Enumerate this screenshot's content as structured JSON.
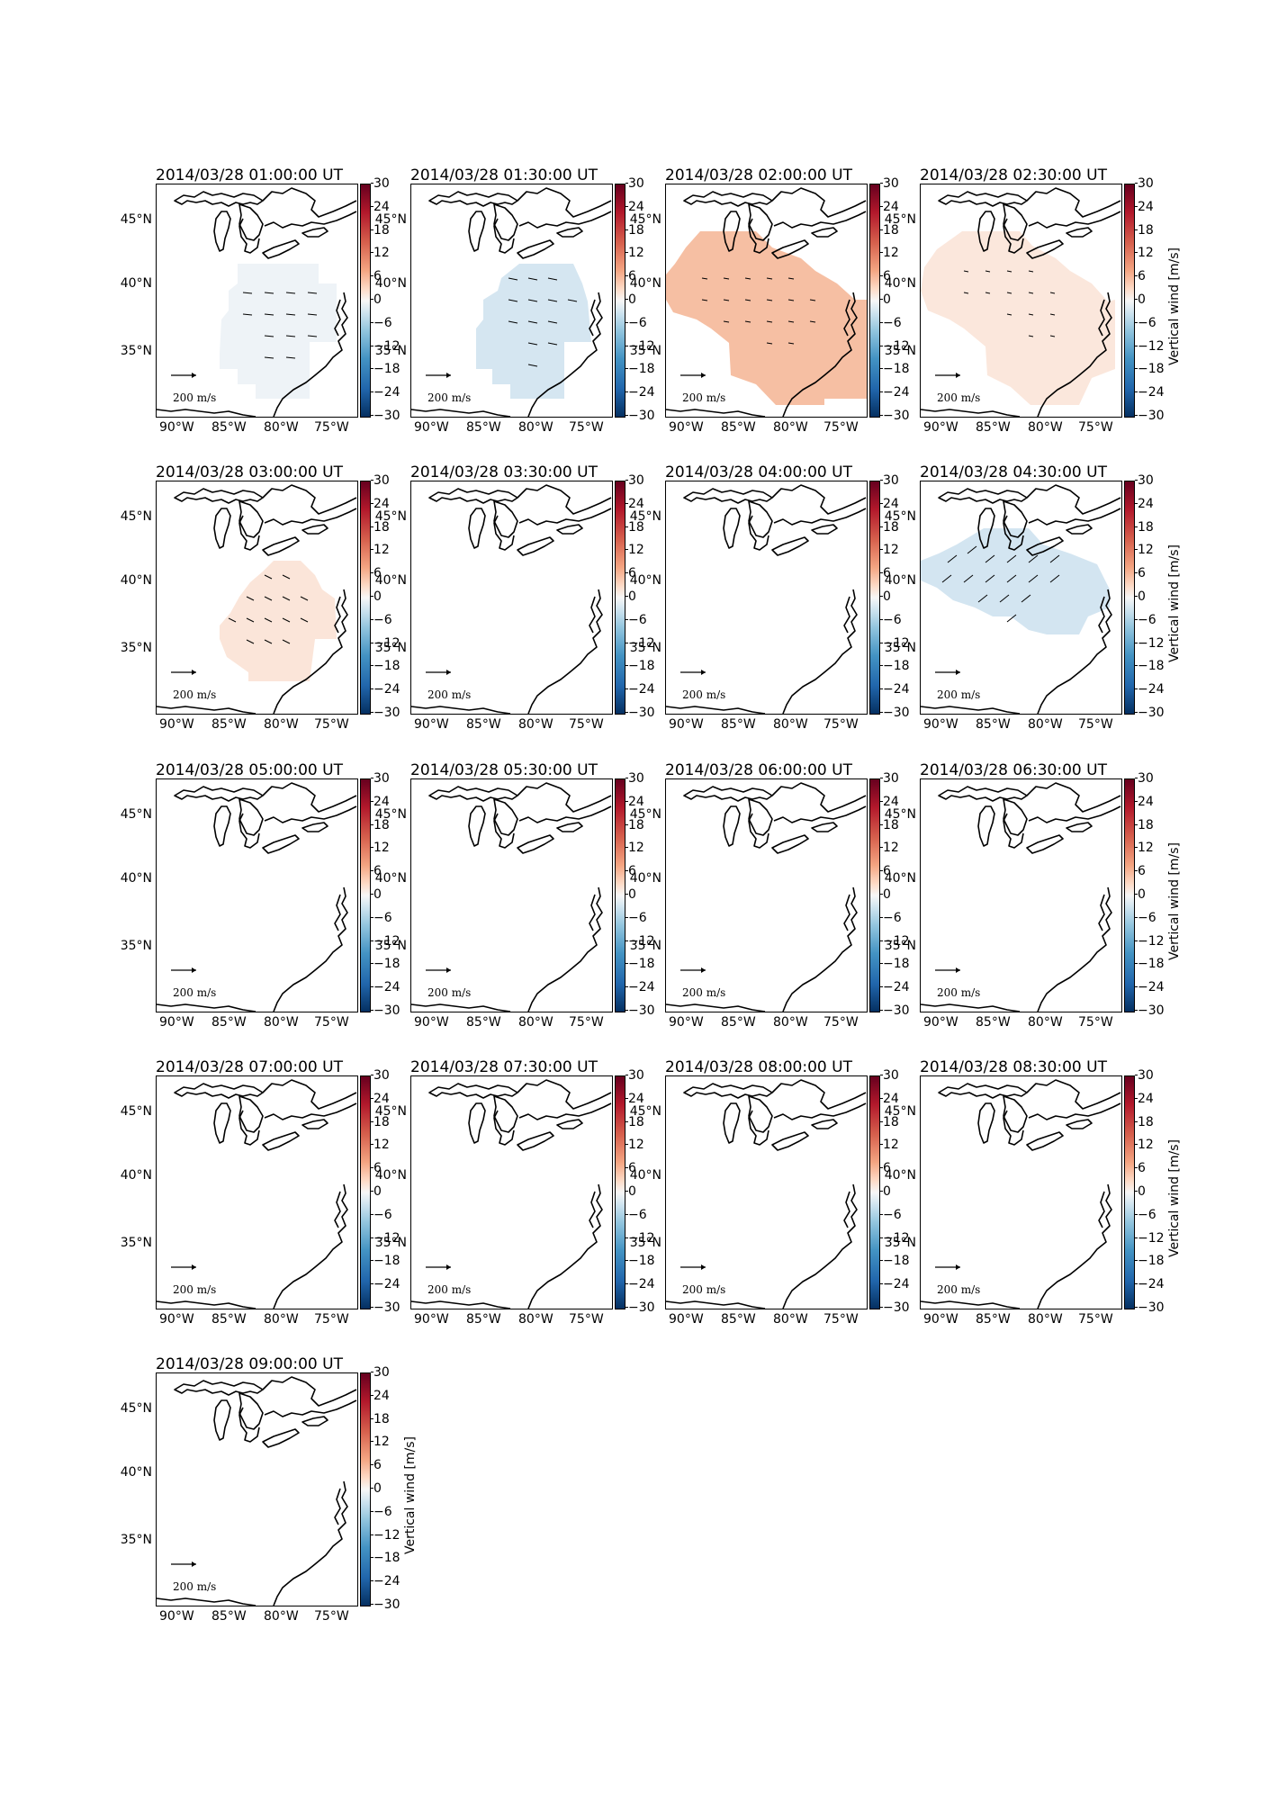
{
  "figure": {
    "colorbar": {
      "label": "Vertical wind [m/s]",
      "ticks": [
        "30",
        "24",
        "18",
        "12",
        "6",
        "0",
        "−6",
        "−12",
        "−18",
        "−24",
        "−30"
      ],
      "range": [
        -30,
        30
      ],
      "colormap": "RdBu_r"
    },
    "axes": {
      "lat_ticks": [
        "45°N",
        "40°N",
        "35°N"
      ],
      "lon_ticks": [
        "90°W",
        "85°W",
        "80°W",
        "75°W"
      ]
    },
    "scale_arrow_label": "200 m/s",
    "panels": [
      {
        "time": "2014/03/28 01:00:00 UT",
        "field": "negative-weak",
        "color": "#eef3f7",
        "colorbar_label": false
      },
      {
        "time": "2014/03/28 01:30:00 UT",
        "field": "negative",
        "color": "#d5e6f1",
        "colorbar_label": false
      },
      {
        "time": "2014/03/28 02:00:00 UT",
        "field": "positive-strong",
        "color": "#f6bfa3",
        "colorbar_label": false
      },
      {
        "time": "2014/03/28 02:30:00 UT",
        "field": "positive-weak",
        "color": "#fbe7dc",
        "colorbar_label": true
      },
      {
        "time": "2014/03/28 03:00:00 UT",
        "field": "positive-weak-south",
        "color": "#fbe5d9",
        "colorbar_label": false
      },
      {
        "time": "2014/03/28 03:30:00 UT",
        "field": "none",
        "color": "",
        "colorbar_label": false
      },
      {
        "time": "2014/03/28 04:00:00 UT",
        "field": "none",
        "color": "",
        "colorbar_label": false
      },
      {
        "time": "2014/03/28 04:30:00 UT",
        "field": "negative-north",
        "color": "#d3e5f1",
        "colorbar_label": true
      },
      {
        "time": "2014/03/28 05:00:00 UT",
        "field": "none",
        "color": "",
        "colorbar_label": false
      },
      {
        "time": "2014/03/28 05:30:00 UT",
        "field": "none",
        "color": "",
        "colorbar_label": false
      },
      {
        "time": "2014/03/28 06:00:00 UT",
        "field": "none",
        "color": "",
        "colorbar_label": false
      },
      {
        "time": "2014/03/28 06:30:00 UT",
        "field": "none",
        "color": "",
        "colorbar_label": true
      },
      {
        "time": "2014/03/28 07:00:00 UT",
        "field": "none",
        "color": "",
        "colorbar_label": false
      },
      {
        "time": "2014/03/28 07:30:00 UT",
        "field": "none",
        "color": "",
        "colorbar_label": false
      },
      {
        "time": "2014/03/28 08:00:00 UT",
        "field": "none",
        "color": "",
        "colorbar_label": false
      },
      {
        "time": "2014/03/28 08:30:00 UT",
        "field": "none",
        "color": "",
        "colorbar_label": true
      },
      {
        "time": "2014/03/28 09:00:00 UT",
        "field": "none",
        "color": "",
        "colorbar_label": true
      }
    ]
  }
}
